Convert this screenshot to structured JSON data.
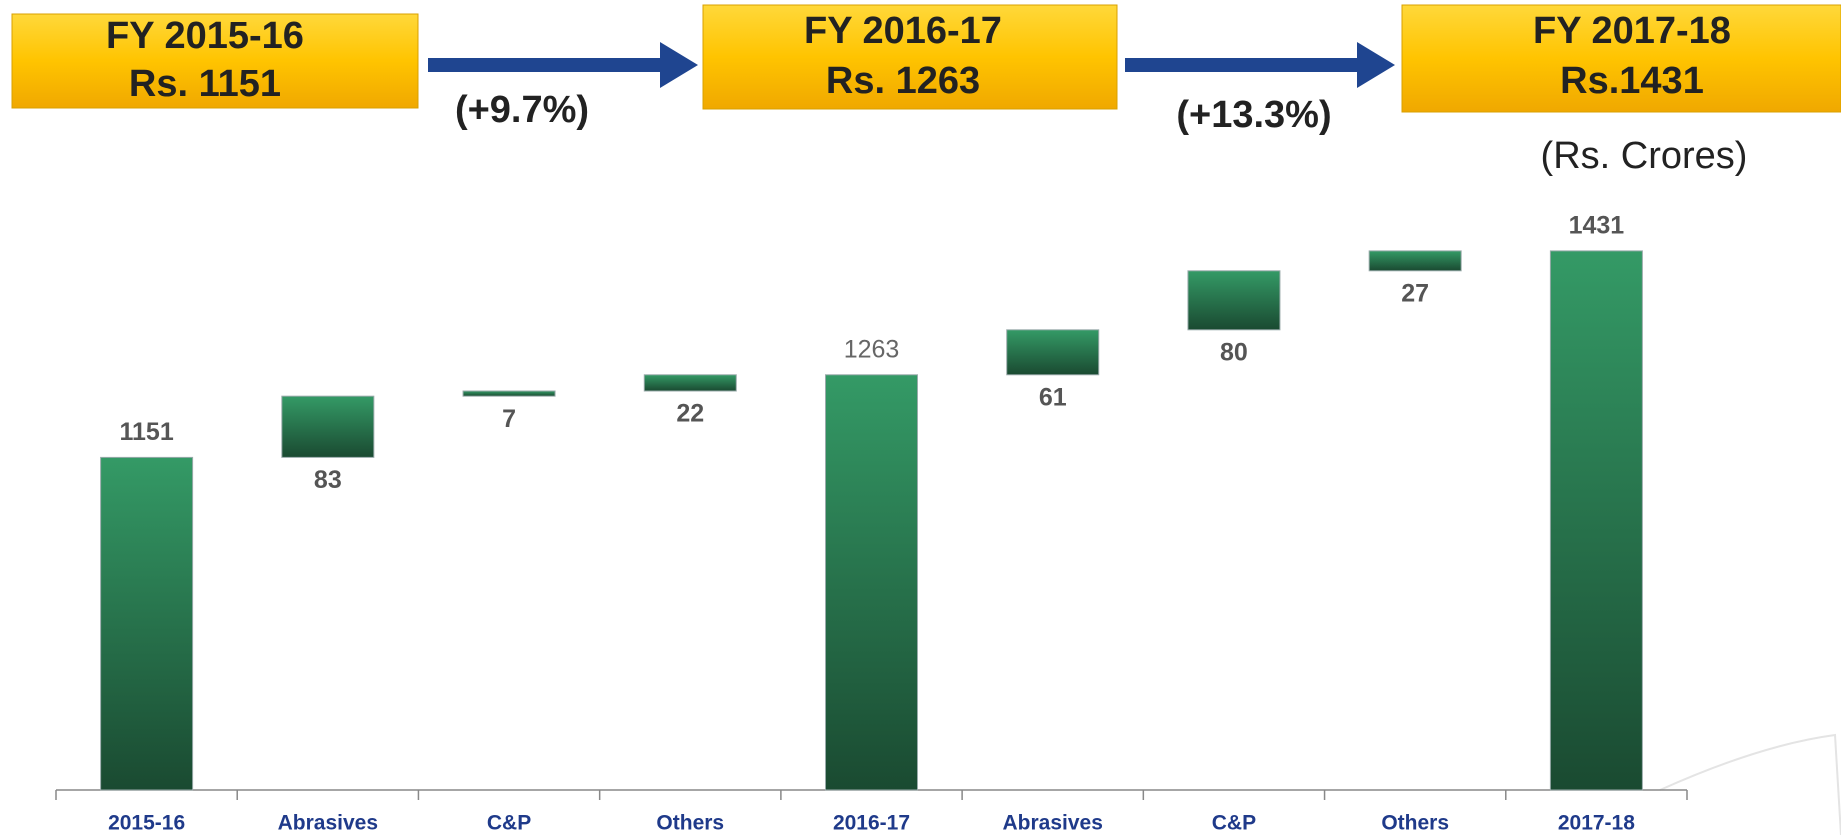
{
  "header": {
    "boxes": [
      {
        "title": "FY 2015-16",
        "value": "Rs. 1151"
      },
      {
        "title": "FY 2016-17",
        "value": "Rs. 1263"
      },
      {
        "title": "FY 2017-18",
        "value": "Rs.1431"
      }
    ],
    "growth": [
      "(+9.7%)",
      "(+13.3%)"
    ],
    "unit": "(Rs. Crores)"
  },
  "chart_data": {
    "type": "waterfall",
    "categories": [
      "2015-16",
      "Abrasives",
      "C&P",
      "Others",
      "2016-17",
      "Abrasives",
      "C&P",
      "Others",
      "2017-18"
    ],
    "values": [
      1151,
      83,
      7,
      22,
      1263,
      61,
      80,
      27,
      1431
    ],
    "measure": [
      "absolute",
      "relative",
      "relative",
      "relative",
      "absolute",
      "relative",
      "relative",
      "relative",
      "absolute"
    ],
    "color": "#2f9160",
    "ylim": [
      700,
      1500
    ]
  }
}
